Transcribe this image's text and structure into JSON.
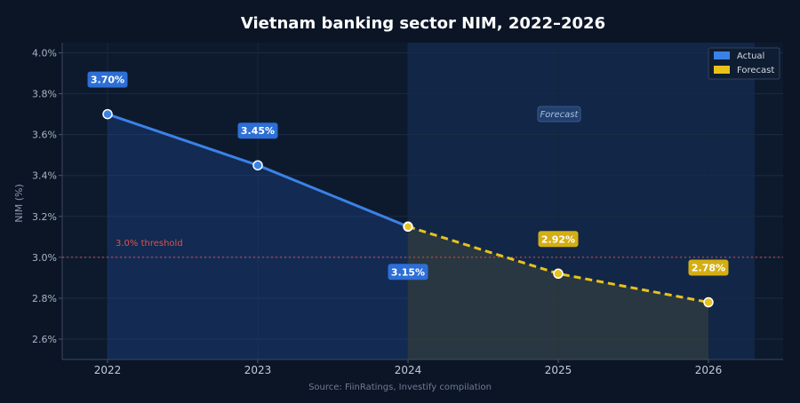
{
  "chart_data": {
    "type": "line",
    "title": "Vietnam banking sector NIM, 2022–2026",
    "ylabel": "NIM (%)",
    "xlabel": "",
    "categories": [
      "2022",
      "2023",
      "2024",
      "2025",
      "2026"
    ],
    "yticks": [
      "2.6%",
      "2.8%",
      "3.0%",
      "3.2%",
      "3.4%",
      "3.6%",
      "3.8%",
      "4.0%"
    ],
    "ytick_values": [
      2.6,
      2.8,
      3.0,
      3.2,
      3.4,
      3.6,
      3.8,
      4.0
    ],
    "ylim": [
      2.5,
      4.05
    ],
    "grid": true,
    "legend_position": "top-right",
    "series": [
      {
        "name": "Actual",
        "x": [
          "2022",
          "2023",
          "2024"
        ],
        "values": [
          3.7,
          3.45,
          3.15
        ],
        "labels": [
          "3.70%",
          "3.45%",
          "3.15%"
        ],
        "color": "#3b82e6",
        "style": "solid"
      },
      {
        "name": "Forecast",
        "x": [
          "2024",
          "2025",
          "2026"
        ],
        "values": [
          3.15,
          2.92,
          2.78
        ],
        "labels": [
          "",
          "2.92%",
          "2.78%"
        ],
        "color": "#e8c21b",
        "style": "dashed"
      }
    ],
    "forecast_region": {
      "from": "2024",
      "label": "Forecast"
    },
    "threshold": {
      "value": 3.0,
      "label": "3.0% threshold",
      "color": "#d9534f"
    },
    "source": "Source: FiinRatings, Investify compilation"
  }
}
